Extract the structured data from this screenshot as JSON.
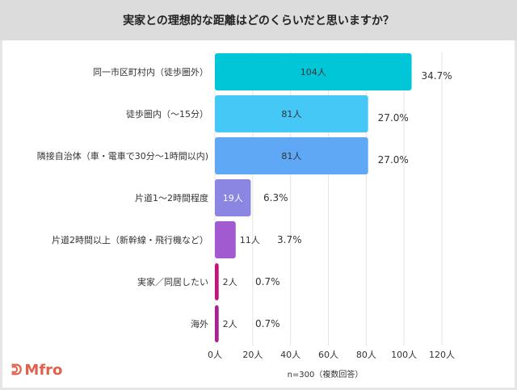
{
  "title": "実家との理想的な距離はどのくらいだと思いますか？",
  "note": "n=300（複数回答）",
  "logo": "Mfro",
  "chart_data": {
    "type": "bar",
    "orientation": "horizontal",
    "title": "実家との理想的な距離はどのくらいだと思いますか？",
    "categories": [
      "同一市区町村内（徒歩圏外）",
      "徒歩圏内（〜15分）",
      "隣接自治体（車・電車で30分〜1時間以内)",
      "片道1〜2時間程度",
      "片道2時間以上（新幹線・飛行機など）",
      "実家／同居したい",
      "海外"
    ],
    "values": [
      104,
      81,
      81,
      19,
      11,
      2,
      2
    ],
    "value_labels": [
      "104人",
      "81人",
      "81人",
      "19人",
      "11人",
      "2人",
      "2人"
    ],
    "percent_labels": [
      "34.7%",
      "27.0%",
      "27.0%",
      "6.3%",
      "3.7%",
      "0.7%",
      "0.7%"
    ],
    "colors": [
      "#00c6d8",
      "#45c8f6",
      "#5fa8f6",
      "#8a86e2",
      "#a25ad0",
      "#c2137c",
      "#a6238f"
    ],
    "xlim": [
      0,
      120
    ],
    "xticks": [
      "0人",
      "20人",
      "40人",
      "60人",
      "80人",
      "100人",
      "120人"
    ],
    "grid": true,
    "xlabel": "n=300（複数回答）"
  }
}
